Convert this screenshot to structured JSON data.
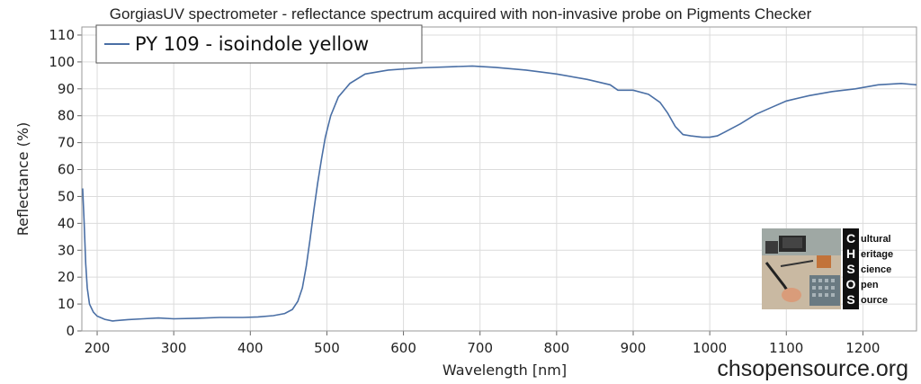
{
  "chart_data": {
    "type": "line",
    "title": "GorgiasUV spectrometer - reflectance spectrum acquired with non-invasive probe on Pigments Checker",
    "xlabel": "Wavelength [nm]",
    "ylabel": "Reflectance (%)",
    "xlim": [
      180,
      1270
    ],
    "ylim": [
      0,
      113
    ],
    "xticks": [
      200,
      300,
      400,
      500,
      600,
      700,
      800,
      900,
      1000,
      1100,
      1200
    ],
    "yticks": [
      0,
      10,
      20,
      30,
      40,
      50,
      60,
      70,
      80,
      90,
      100,
      110
    ],
    "grid": true,
    "legend_position": "top-left",
    "series": [
      {
        "name": "PY 109 - isoindole yellow",
        "color": "#4a6fa5",
        "x": [
          181,
          183,
          185,
          187,
          190,
          195,
          200,
          210,
          220,
          240,
          260,
          280,
          300,
          330,
          360,
          390,
          410,
          430,
          445,
          455,
          462,
          468,
          473,
          478,
          483,
          488,
          493,
          498,
          505,
          515,
          530,
          550,
          580,
          620,
          660,
          690,
          720,
          760,
          800,
          840,
          870,
          880,
          900,
          920,
          935,
          945,
          955,
          965,
          975,
          990,
          1000,
          1010,
          1020,
          1040,
          1060,
          1080,
          1100,
          1130,
          1160,
          1190,
          1220,
          1250,
          1270
        ],
        "y": [
          53,
          40,
          25,
          16,
          10,
          7,
          5.5,
          4.3,
          3.7,
          4.2,
          4.5,
          4.8,
          4.5,
          4.7,
          5.0,
          5.0,
          5.2,
          5.7,
          6.5,
          8,
          11,
          16,
          24,
          34,
          45,
          55,
          64,
          72,
          80,
          87,
          92,
          95.5,
          97,
          97.8,
          98.2,
          98.5,
          98,
          97,
          95.5,
          93.5,
          91.5,
          89.5,
          89.5,
          88,
          85,
          81,
          76,
          73,
          72.5,
          72,
          72,
          72.5,
          74,
          77,
          80.5,
          83,
          85.5,
          87.5,
          89,
          90,
          91.5,
          92,
          91.5
        ]
      }
    ]
  },
  "watermark": {
    "site": "chsopensource.org",
    "letters": [
      "C",
      "H",
      "S",
      "O",
      "S"
    ],
    "words": [
      "ultural",
      "eritage",
      "cience",
      "pen",
      "ource"
    ]
  }
}
